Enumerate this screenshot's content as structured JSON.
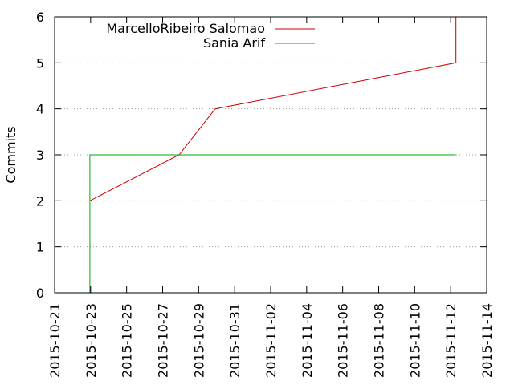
{
  "chart_data": {
    "type": "line",
    "ylabel": "Commits",
    "xlabel": "",
    "ylim": [
      0,
      6
    ],
    "xlim": [
      "2015-10-21",
      "2015-11-14"
    ],
    "y_ticks": [
      "0",
      "1",
      "2",
      "3",
      "4",
      "5",
      "6"
    ],
    "x_ticks": [
      "2015-10-21",
      "2015-10-23",
      "2015-10-25",
      "2015-10-27",
      "2015-10-29",
      "2015-10-31",
      "2015-11-02",
      "2015-11-04",
      "2015-11-06",
      "2015-11-08",
      "2015-11-10",
      "2015-11-12",
      "2015-11-14"
    ],
    "grid": true,
    "legend_position": "top-left",
    "series": [
      {
        "name": "MarcelloRibeiro Salomao",
        "color": "#cc0000",
        "points": [
          {
            "x": "2015-10-22T23:00",
            "y": 2
          },
          {
            "x": "2015-10-27T22:00",
            "y": 3
          },
          {
            "x": "2015-10-29T22:00",
            "y": 4
          },
          {
            "x": "2015-11-12T07:00",
            "y": 5
          },
          {
            "x": "2015-11-12T07:00",
            "y": 6
          }
        ]
      },
      {
        "name": "Sania Arif",
        "color": "#00aa00",
        "points": [
          {
            "x": "2015-10-22T23:00",
            "y": 0
          },
          {
            "x": "2015-10-22T23:00",
            "y": 3
          },
          {
            "x": "2015-11-12T07:00",
            "y": 3
          }
        ]
      }
    ]
  }
}
